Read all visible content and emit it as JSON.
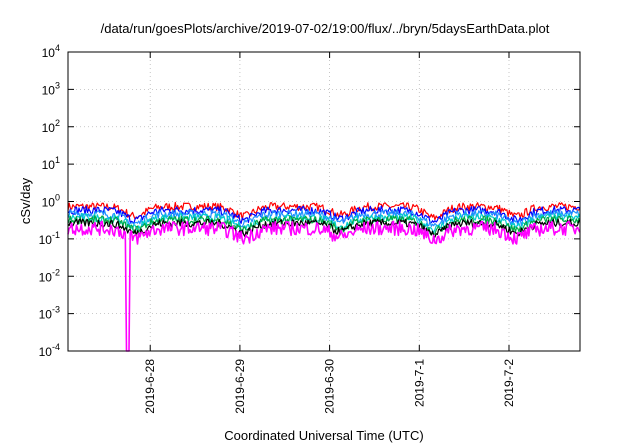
{
  "chart_data": {
    "type": "line",
    "title": "/data/run/goesPlots/archive/2019-07-02/19:00/flux/../bryn/5daysEarthData.plot",
    "xlabel": "Coordinated Universal Time (UTC)",
    "ylabel": "cSv/day",
    "yscale": "log",
    "ylim": [
      0.0001,
      10000
    ],
    "y_ticks": [
      {
        "value": 0.0001,
        "base": "10",
        "exp": "-4"
      },
      {
        "value": 0.001,
        "base": "10",
        "exp": "-3"
      },
      {
        "value": 0.01,
        "base": "10",
        "exp": "-2"
      },
      {
        "value": 0.1,
        "base": "10",
        "exp": "-1"
      },
      {
        "value": 1,
        "base": "10",
        "exp": "0"
      },
      {
        "value": 10,
        "base": "10",
        "exp": "1"
      },
      {
        "value": 100,
        "base": "10",
        "exp": "2"
      },
      {
        "value": 1000,
        "base": "10",
        "exp": "3"
      },
      {
        "value": 10000,
        "base": "10",
        "exp": "4"
      }
    ],
    "xlim": [
      "2019-06-27 02:00",
      "2019-07-02 19:00"
    ],
    "x_ticks": [
      "2019-6-28",
      "2019-6-29",
      "2019-6-30",
      "2019-7-1",
      "2019-7-2"
    ],
    "x_tick_dates": [
      "2019-06-28",
      "2019-06-29",
      "2019-06-30",
      "2019-07-01",
      "2019-07-02"
    ],
    "grid": true,
    "legend": "none",
    "series": [
      {
        "color": "#ff0000",
        "baseline": 0.75
      },
      {
        "color": "#0000ff",
        "baseline": 0.6
      },
      {
        "color": "#1e90ff",
        "baseline": 0.48
      },
      {
        "color": "#00cccc",
        "baseline": 0.38
      },
      {
        "color": "#00aa44",
        "baseline": 0.33
      },
      {
        "color": "#000000",
        "baseline": 0.27
      },
      {
        "color": "#ff00ff",
        "baseline": 0.2
      }
    ],
    "dips": [
      {
        "date": "2019-06-27 20:00",
        "factor": 0.55
      },
      {
        "date": "2019-06-29 01:00",
        "factor": 0.55
      },
      {
        "date": "2019-06-30 03:00",
        "factor": 0.6
      },
      {
        "date": "2019-07-01 04:00",
        "factor": 0.5
      },
      {
        "date": "2019-07-02 02:00",
        "factor": 0.55
      }
    ],
    "spike_down": {
      "date": "2019-06-27 18:00",
      "series": 6,
      "min": 0.0001
    }
  }
}
